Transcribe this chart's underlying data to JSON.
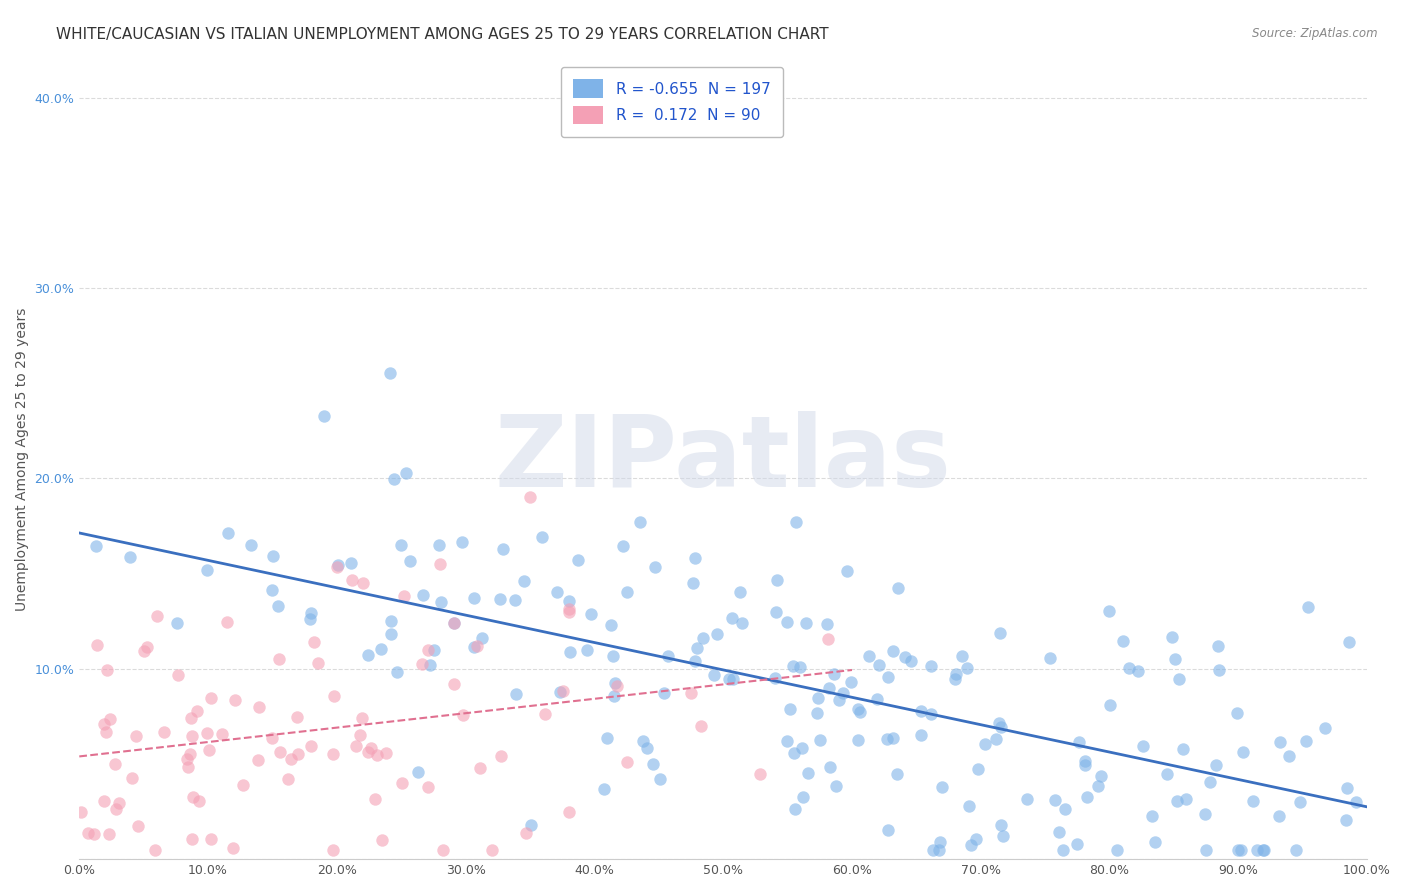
{
  "title": "WHITE/CAUCASIAN VS ITALIAN UNEMPLOYMENT AMONG AGES 25 TO 29 YEARS CORRELATION CHART",
  "source": "Source: ZipAtlas.com",
  "xlabel": "",
  "ylabel": "Unemployment Among Ages 25 to 29 years",
  "xlim": [
    0,
    1.0
  ],
  "ylim": [
    0,
    0.42
  ],
  "xticks": [
    0.0,
    0.1,
    0.2,
    0.3,
    0.4,
    0.5,
    0.6,
    0.7,
    0.8,
    0.9,
    1.0
  ],
  "xtick_labels": [
    "0.0%",
    "10.0%",
    "20.0%",
    "30.0%",
    "40.0%",
    "50.0%",
    "60.0%",
    "70.0%",
    "80.0%",
    "90.0%",
    "100.0%"
  ],
  "yticks": [
    0.0,
    0.1,
    0.2,
    0.3,
    0.4
  ],
  "ytick_labels": [
    "",
    "10.0%",
    "20.0%",
    "30.0%",
    "40.0%"
  ],
  "white_R": -0.655,
  "white_N": 197,
  "italian_R": 0.172,
  "italian_N": 90,
  "white_color": "#7fb3e8",
  "italian_color": "#f4a0b5",
  "white_line_color": "#3a6fbf",
  "italian_line_color": "#e07090",
  "background_color": "#ffffff",
  "grid_color": "#cccccc",
  "watermark_text": "ZIPatlas",
  "watermark_color": "#d0d8e8",
  "title_fontsize": 11,
  "axis_label_fontsize": 10,
  "tick_fontsize": 9
}
